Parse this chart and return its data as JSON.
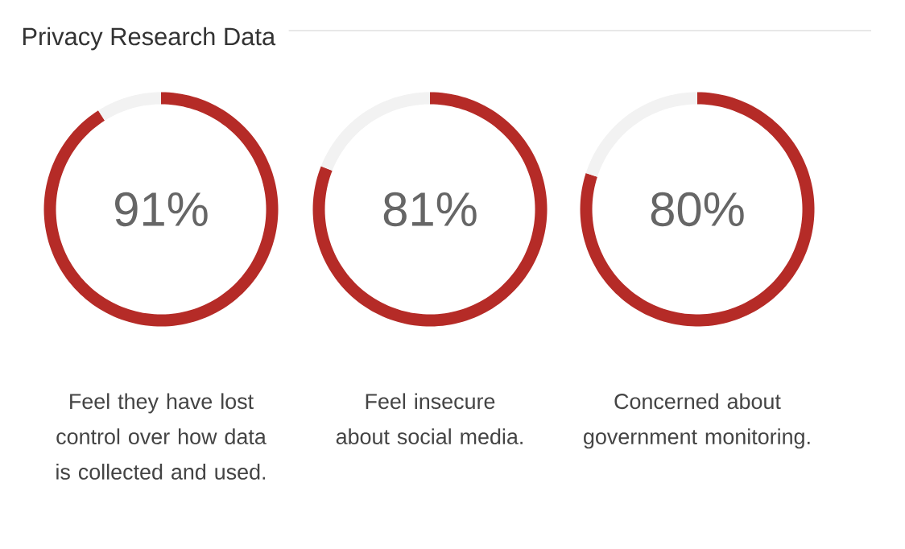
{
  "chart_data": [
    {
      "type": "donut",
      "title": "Privacy Research Data",
      "categories": [
        null,
        null
      ],
      "values": [
        91,
        9
      ],
      "colors": [
        "#b52b27",
        "#f2f2f2"
      ],
      "value_labels": [
        "91%",
        null
      ],
      "annotations": [
        "Feel they have lost control over how data is collected and used."
      ]
    },
    {
      "type": "donut",
      "categories": [
        null,
        null
      ],
      "values": [
        81,
        19
      ],
      "colors": [
        "#b52b27",
        "#f2f2f2"
      ],
      "value_labels": [
        "81%",
        null
      ],
      "annotations": [
        "Feel insecure about social media."
      ]
    },
    {
      "type": "donut",
      "categories": [
        null,
        null
      ],
      "values": [
        80,
        20
      ],
      "colors": [
        "#b52b27",
        "#f2f2f2"
      ],
      "value_labels": [
        "80%",
        null
      ],
      "annotations": [
        "Concerned about government monitoring."
      ]
    }
  ]
}
